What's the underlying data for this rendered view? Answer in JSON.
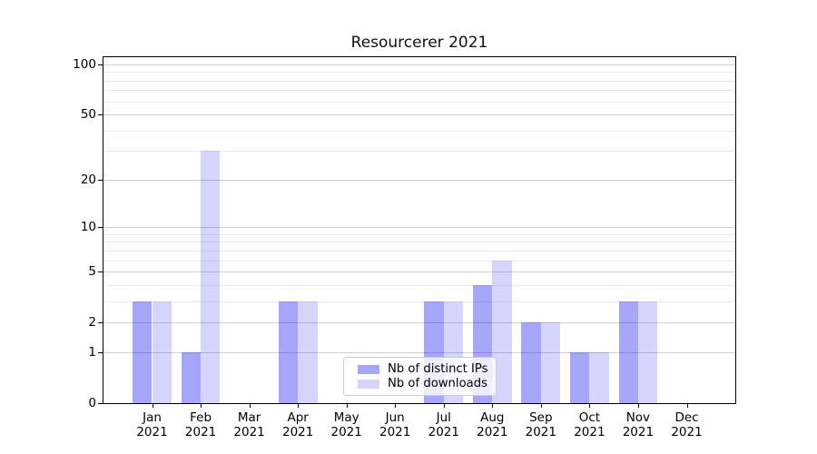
{
  "chart_data": {
    "type": "bar",
    "title": "Resourcerer 2021",
    "categories": [
      "Jan 2021",
      "Feb 2021",
      "Mar 2021",
      "Apr 2021",
      "May 2021",
      "Jun 2021",
      "Jul 2021",
      "Aug 2021",
      "Sep 2021",
      "Oct 2021",
      "Nov 2021",
      "Dec 2021"
    ],
    "series": [
      {
        "name": "Nb of distinct IPs",
        "color": "#0000F059",
        "values": [
          3,
          1,
          0,
          3,
          0,
          0,
          3,
          4,
          2,
          1,
          3,
          0
        ]
      },
      {
        "name": "Nb of downloads",
        "color": "#0000F029",
        "values": [
          3,
          30,
          0,
          3,
          0,
          0,
          3,
          6,
          2,
          1,
          3,
          0
        ]
      }
    ],
    "yscale": "log1p",
    "ylim": [
      0,
      110.4
    ],
    "y_major_ticks": [
      0,
      1,
      2,
      5,
      10,
      20,
      50,
      100
    ],
    "y_minor_ticks": [
      3,
      4,
      6,
      7,
      8,
      9,
      30,
      40,
      60,
      70,
      80,
      90
    ],
    "grid": "horizontal",
    "legend_position": "lower-center",
    "colors": {
      "major_grid": "#CFCFCF",
      "minor_grid": "#EBEBEB",
      "axis": "#000000",
      "background": "#FFFFFF"
    }
  }
}
